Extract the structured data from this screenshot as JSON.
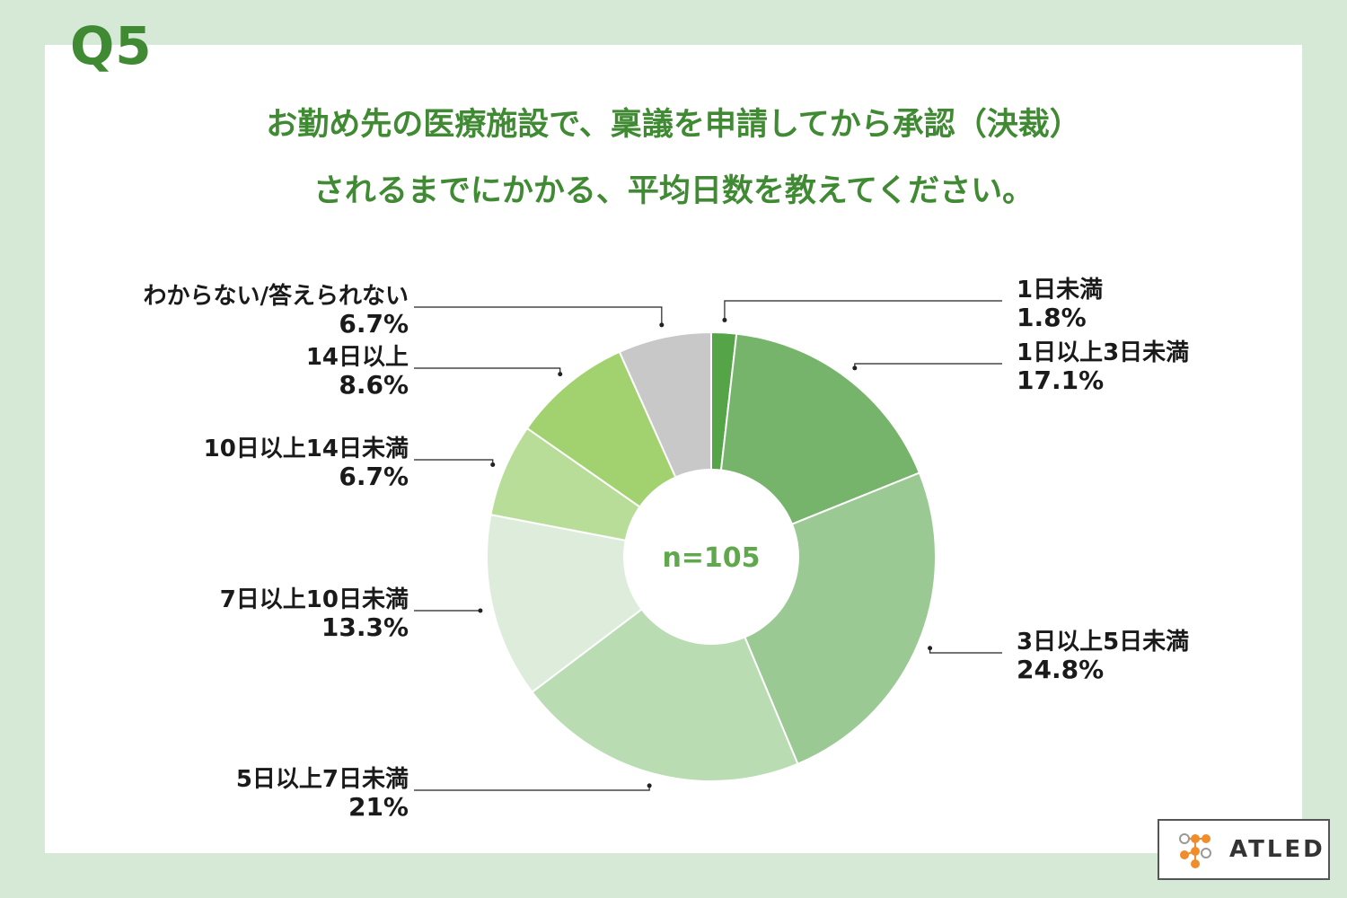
{
  "header": {
    "question": "Q5",
    "title_line1": "お勤め先の医療施設で、稟議を申請してから承認（決裁）",
    "title_line2": "されるまでにかかる、平均日数を教えてください。"
  },
  "colors": {
    "background": "#d6e9d6",
    "accent": "#3f8a32",
    "center_text": "#5fa84c"
  },
  "chart_data": {
    "type": "pie",
    "donut": true,
    "center_label": "n=105",
    "slices": [
      {
        "label": "1日未満",
        "pct_text": "1.8%",
        "value": 1.8,
        "color": "#55a448"
      },
      {
        "label": "1日以上3日未満",
        "pct_text": "17.1%",
        "value": 17.1,
        "color": "#76b46b"
      },
      {
        "label": "3日以上5日未満",
        "pct_text": "24.8%",
        "value": 24.8,
        "color": "#9bc994"
      },
      {
        "label": "5日以上7日未満",
        "pct_text": "21%",
        "value": 21.0,
        "color": "#badcb3"
      },
      {
        "label": "7日以上10日未満",
        "pct_text": "13.3%",
        "value": 13.3,
        "color": "#deeddb"
      },
      {
        "label": "10日以上14日未満",
        "pct_text": "6.7%",
        "value": 6.7,
        "color": "#b8dd98"
      },
      {
        "label": "14日以上",
        "pct_text": "8.6%",
        "value": 8.6,
        "color": "#a2d16f"
      },
      {
        "label": "わからない/答えられない",
        "pct_text": "6.7%",
        "value": 6.7,
        "color": "#c8c8c8"
      }
    ]
  },
  "logo": {
    "text": "ATLED"
  }
}
